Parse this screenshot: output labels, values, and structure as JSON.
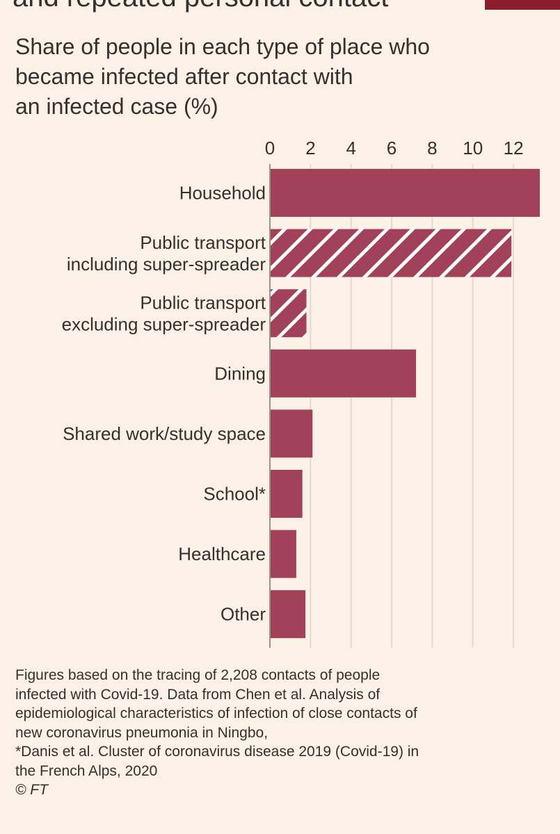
{
  "cut_title": "and repeated personal contact",
  "subtitle_lines": [
    "Share of people in each type of place who",
    "became infected after contact with",
    "an infected case (%)"
  ],
  "colors": {
    "bar": "#a1425a",
    "background": "#fcf1e6",
    "grid": "#e3d9cf",
    "text": "#33302e",
    "accent": "#8b1d2c"
  },
  "chart_data": {
    "type": "bar",
    "orientation": "horizontal",
    "xlim": [
      0,
      13.3
    ],
    "xticks": [
      "0",
      "2",
      "4",
      "6",
      "8",
      "10",
      "12"
    ],
    "grid": true,
    "categories": [
      [
        "Household"
      ],
      [
        "Public transport",
        "including super-spreader"
      ],
      [
        "Public transport",
        "excluding super-spreader"
      ],
      [
        "Dining"
      ],
      [
        "Shared work/study space"
      ],
      [
        "School*"
      ],
      [
        "Healthcare"
      ],
      [
        "Other"
      ]
    ],
    "values": [
      13.3,
      11.9,
      1.8,
      7.2,
      2.1,
      1.6,
      1.3,
      1.75
    ],
    "hatched": [
      false,
      true,
      true,
      false,
      false,
      false,
      false,
      false
    ]
  },
  "footnote_lines": [
    "Figures based on the tracing of 2,208 contacts of people",
    "infected with Covid-19. Data from Chen et al. Analysis of",
    "epidemiological characteristics of infection of close contacts of",
    "new coronavirus pneumonia in Ningbo,",
    "*Danis et al. Cluster of coronavirus disease 2019 (Covid-19) in",
    "the French Alps, 2020"
  ],
  "credit": "© FT"
}
